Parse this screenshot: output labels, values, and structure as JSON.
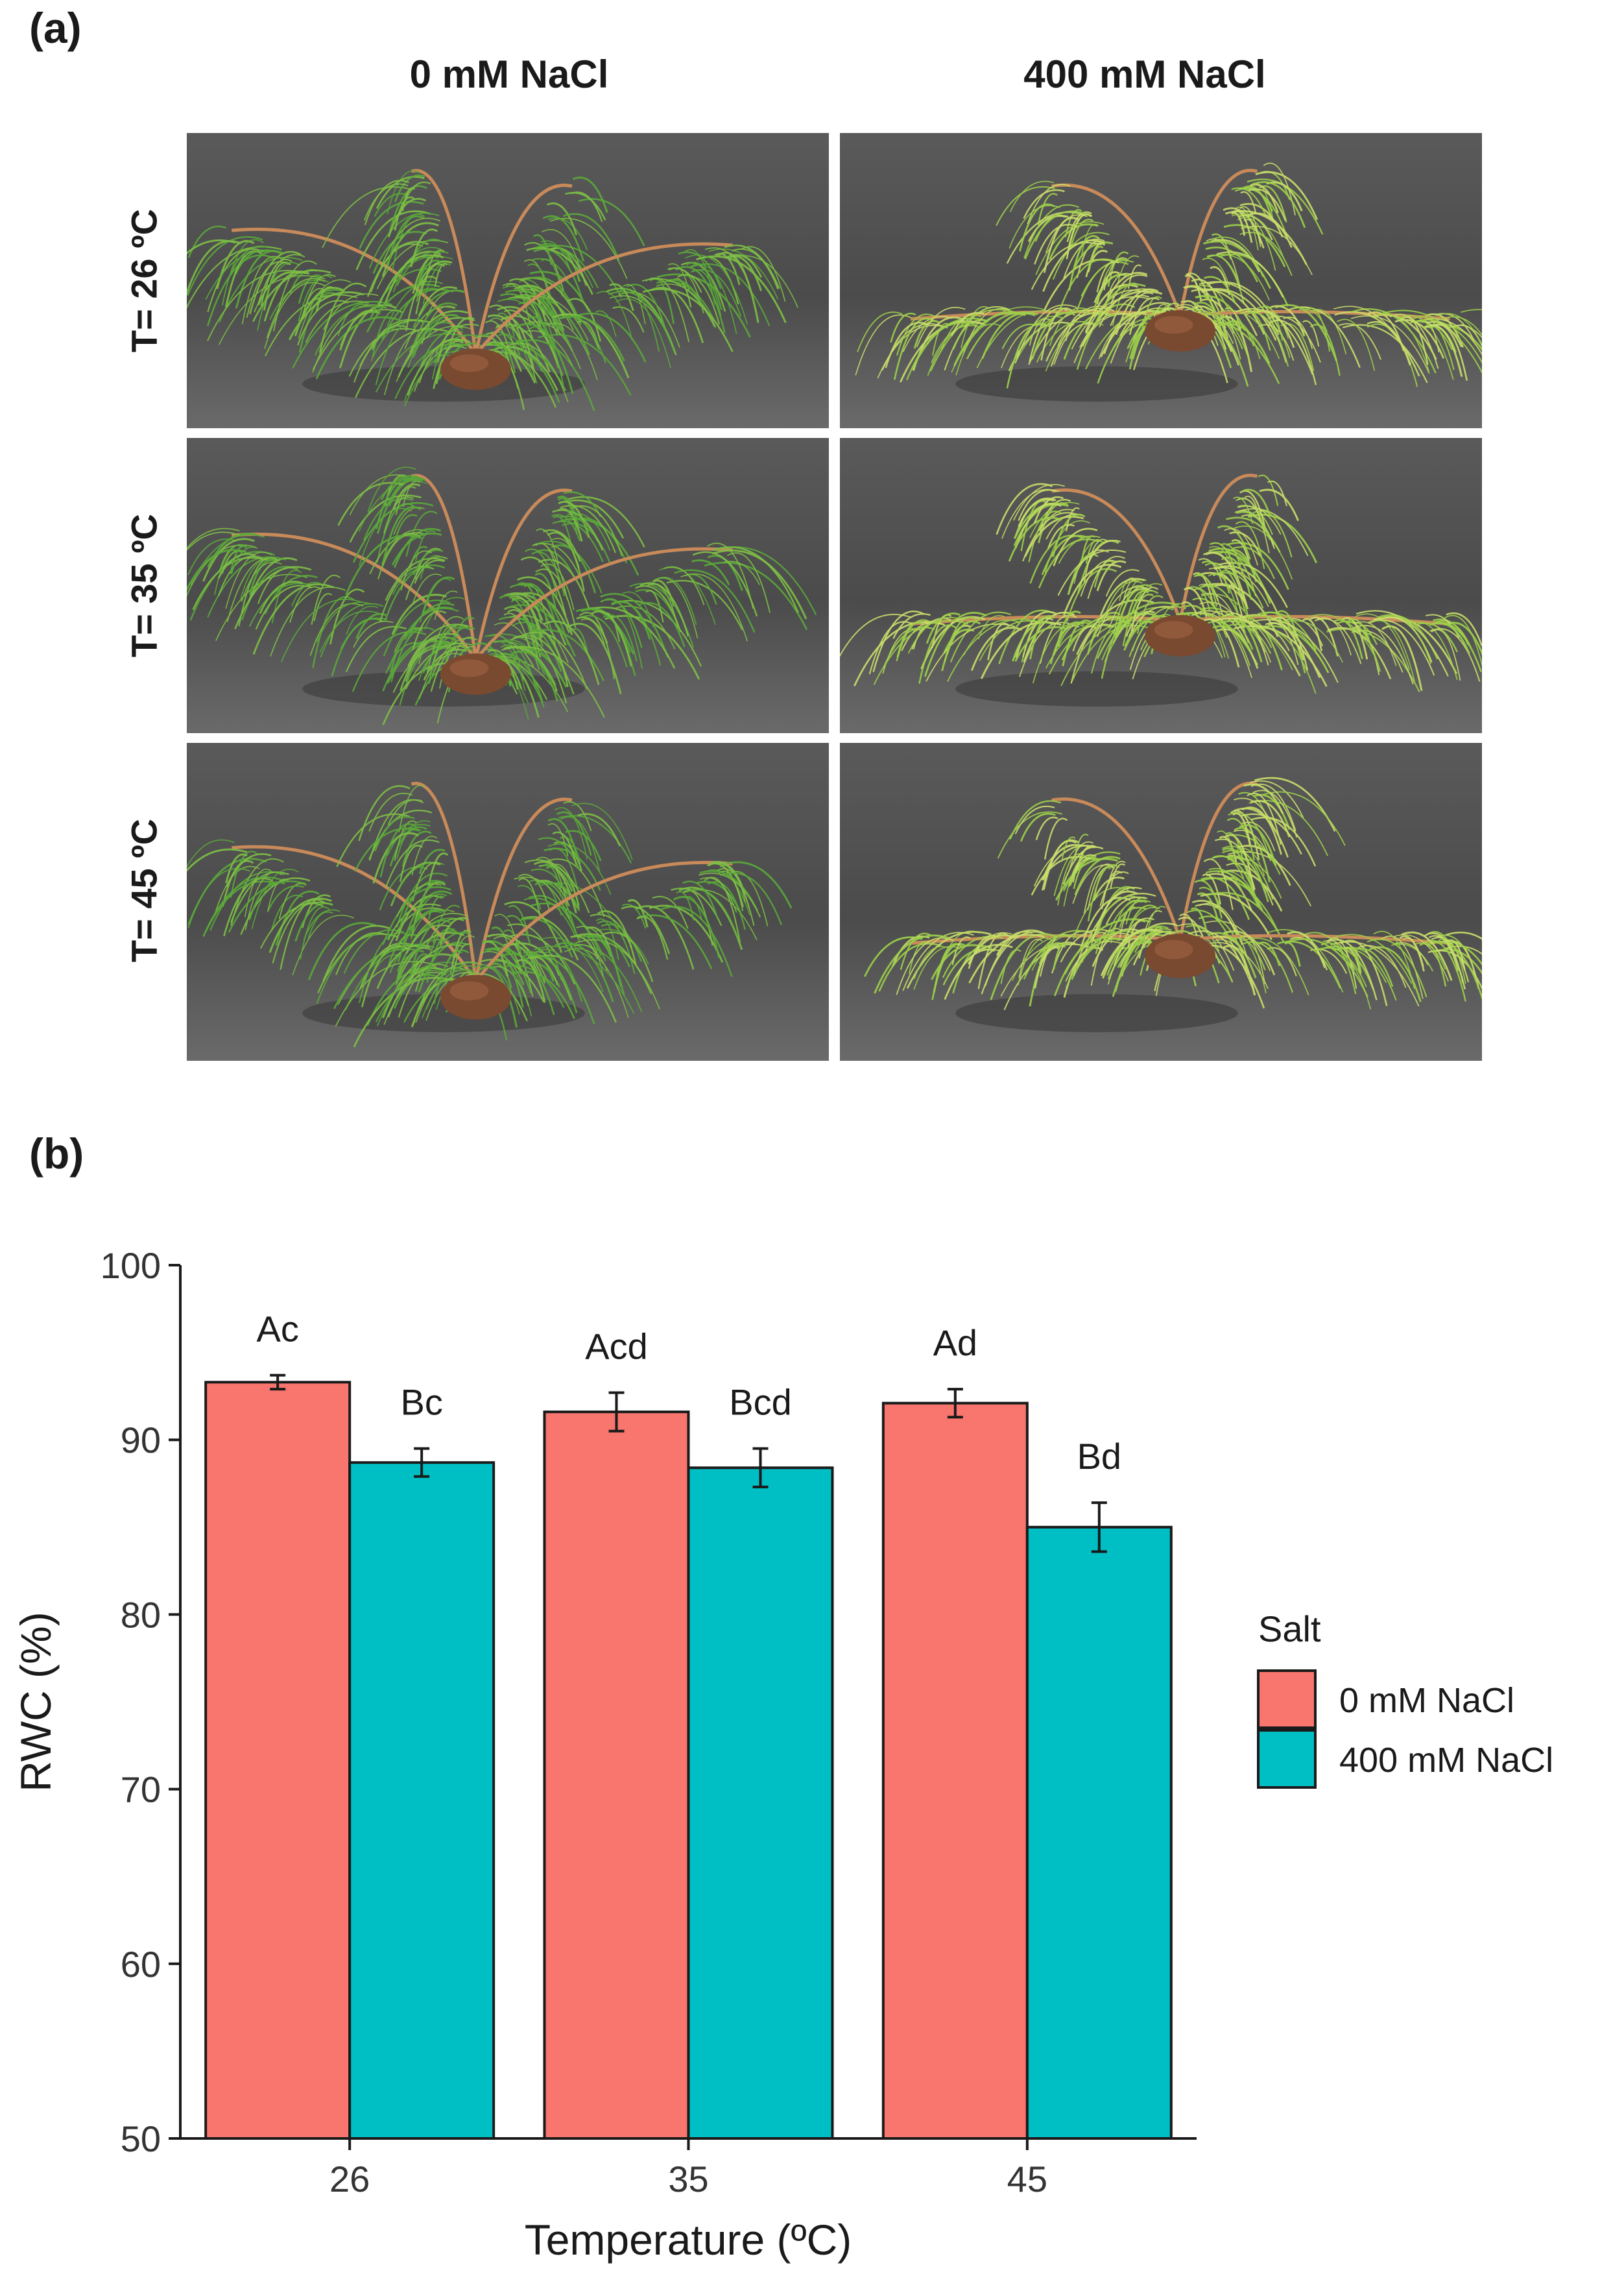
{
  "panel_a": {
    "label": "(a)",
    "columns": [
      "0 mM NaCl",
      "400 mM NaCl"
    ],
    "rows": [
      "T= 26 ºC",
      "T= 35 ºC",
      "T= 45 ºC"
    ]
  },
  "panel_b": {
    "label": "(b)"
  },
  "colors": {
    "control": "#F8766D",
    "salt": "#00BFC4",
    "background_cloth": "#4a4a4a"
  },
  "chart_data": {
    "type": "bar",
    "xlabel": "Temperature (ºC)",
    "ylabel": "RWC (%)",
    "ylim": [
      50,
      100
    ],
    "yticks": [
      50,
      60,
      70,
      80,
      90,
      100
    ],
    "categories": [
      "26",
      "35",
      "45"
    ],
    "legend": {
      "title": "Salt",
      "position": "right"
    },
    "series": [
      {
        "name": "0 mM NaCl",
        "color": "#F8766D",
        "values": [
          93.3,
          91.6,
          92.1
        ],
        "errors": [
          0.4,
          1.1,
          0.8
        ],
        "labels": [
          "Ac",
          "Acd",
          "Ad"
        ]
      },
      {
        "name": "400 mM NaCl",
        "color": "#00BFC4",
        "values": [
          88.7,
          88.4,
          85.0
        ],
        "errors": [
          0.8,
          1.1,
          1.4
        ],
        "labels": [
          "Bc",
          "Bcd",
          "Bd"
        ]
      }
    ]
  }
}
